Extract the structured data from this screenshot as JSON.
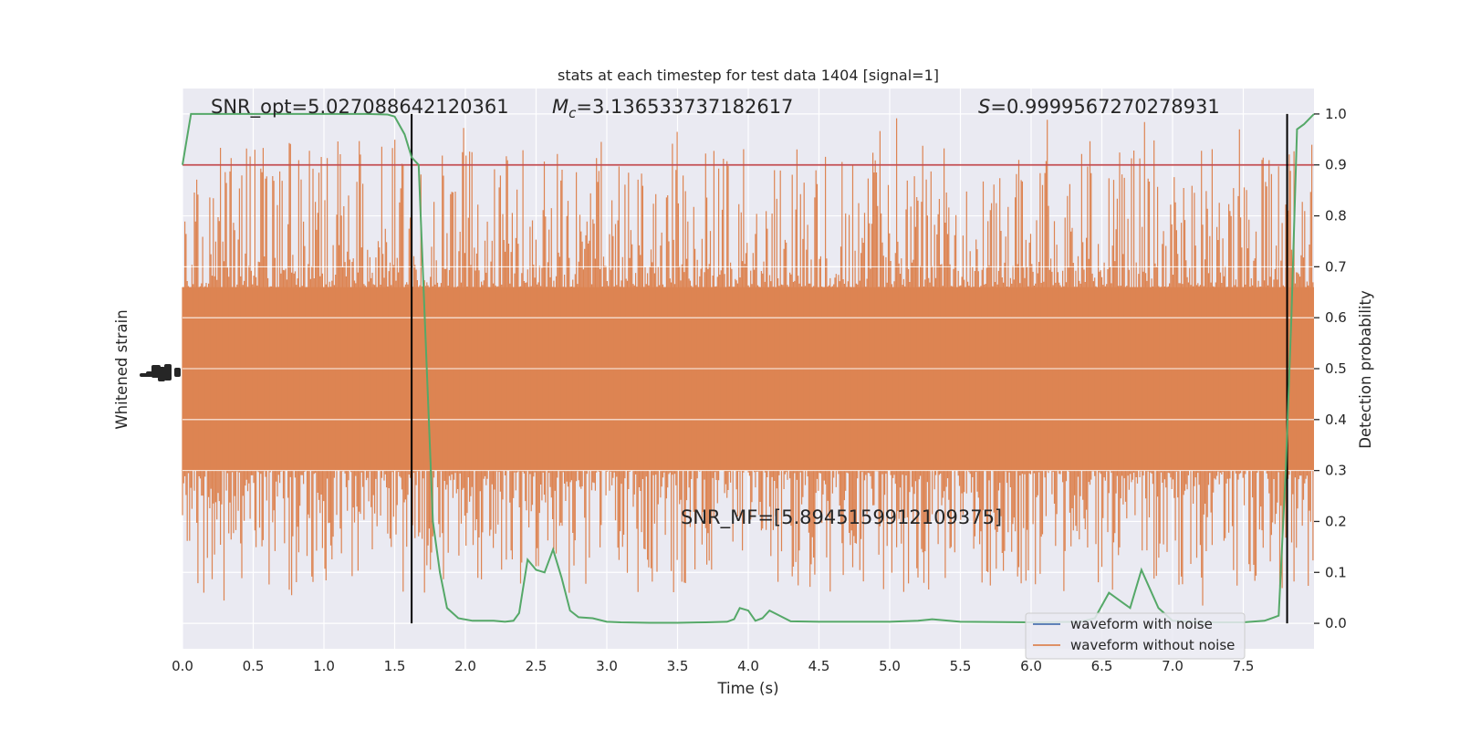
{
  "chart_data": {
    "type": "line",
    "title": "stats at each timestep for test data 1404 [signal=1]",
    "xlabel": "Time (s)",
    "ylabel_left": "Whitened strain",
    "ylabel_right": "Detection probability",
    "xlim": [
      0.0,
      8.0
    ],
    "ylim_right": [
      -0.05,
      1.05
    ],
    "x_ticks": [
      0.0,
      0.5,
      1.0,
      1.5,
      2.0,
      2.5,
      3.0,
      3.5,
      4.0,
      4.5,
      5.0,
      5.5,
      6.0,
      6.5,
      7.0,
      7.5
    ],
    "x_tick_labels": [
      "0.0",
      "0.5",
      "1.0",
      "1.5",
      "2.0",
      "2.5",
      "3.0",
      "3.5",
      "4.0",
      "4.5",
      "5.0",
      "5.5",
      "6.0",
      "6.5",
      "7.0",
      "7.5"
    ],
    "y_right_ticks": [
      0.0,
      0.1,
      0.2,
      0.3,
      0.4,
      0.5,
      0.6,
      0.7,
      0.8,
      0.9,
      1.0
    ],
    "y_right_tick_labels": [
      "0.0",
      "0.1",
      "0.2",
      "0.3",
      "0.4",
      "0.5",
      "0.6",
      "0.7",
      "0.8",
      "0.9",
      "1.0"
    ],
    "grid": true,
    "legend_position": "bottom-right",
    "threshold": {
      "y": 0.9,
      "color": "#c44e52"
    },
    "vertical_markers": [
      1.62,
      7.81
    ],
    "annotations": {
      "snr_opt": "SNR_opt=5.027088642120361",
      "mc_symbol": "M",
      "mc_subscript": "c",
      "mc_value": "=3.136533737182617",
      "s_symbol": "S",
      "s_value": "=0.9999567270278931",
      "snr_mf": "SNR_MF=[5.8945159912109375]"
    },
    "series": [
      {
        "name": "waveform with noise",
        "color": "#4c72b0"
      },
      {
        "name": "waveform without noise",
        "color": "#dd8452"
      },
      {
        "color": "#55a868",
        "x": [
          0.0,
          0.06,
          0.2,
          0.5,
          1.0,
          1.3,
          1.45,
          1.5,
          1.57,
          1.62,
          1.67,
          1.72,
          1.77,
          1.82,
          1.87,
          1.95,
          2.05,
          2.2,
          2.28,
          2.34,
          2.38,
          2.44,
          2.5,
          2.56,
          2.62,
          2.68,
          2.74,
          2.8,
          2.9,
          3.0,
          3.1,
          3.3,
          3.5,
          3.7,
          3.85,
          3.9,
          3.94,
          4.0,
          4.05,
          4.1,
          4.15,
          4.2,
          4.3,
          4.5,
          5.0,
          5.2,
          5.3,
          5.5,
          6.0,
          6.35,
          6.45,
          6.55,
          6.65,
          6.7,
          6.78,
          6.9,
          7.0,
          7.2,
          7.5,
          7.65,
          7.75,
          7.8,
          7.84,
          7.88,
          7.93,
          8.0
        ],
        "y": [
          0.9,
          1.0,
          1.0,
          1.0,
          1.0,
          1.0,
          0.999,
          0.995,
          0.96,
          0.915,
          0.9,
          0.55,
          0.2,
          0.1,
          0.03,
          0.01,
          0.005,
          0.005,
          0.003,
          0.005,
          0.02,
          0.125,
          0.105,
          0.1,
          0.145,
          0.09,
          0.025,
          0.012,
          0.01,
          0.003,
          0.002,
          0.001,
          0.001,
          0.002,
          0.003,
          0.008,
          0.03,
          0.025,
          0.005,
          0.01,
          0.025,
          0.018,
          0.004,
          0.003,
          0.003,
          0.005,
          0.008,
          0.003,
          0.002,
          0.003,
          0.01,
          0.06,
          0.04,
          0.03,
          0.105,
          0.03,
          0.005,
          0.002,
          0.002,
          0.005,
          0.015,
          0.3,
          0.6,
          0.97,
          0.98,
          1.0
        ]
      }
    ]
  }
}
